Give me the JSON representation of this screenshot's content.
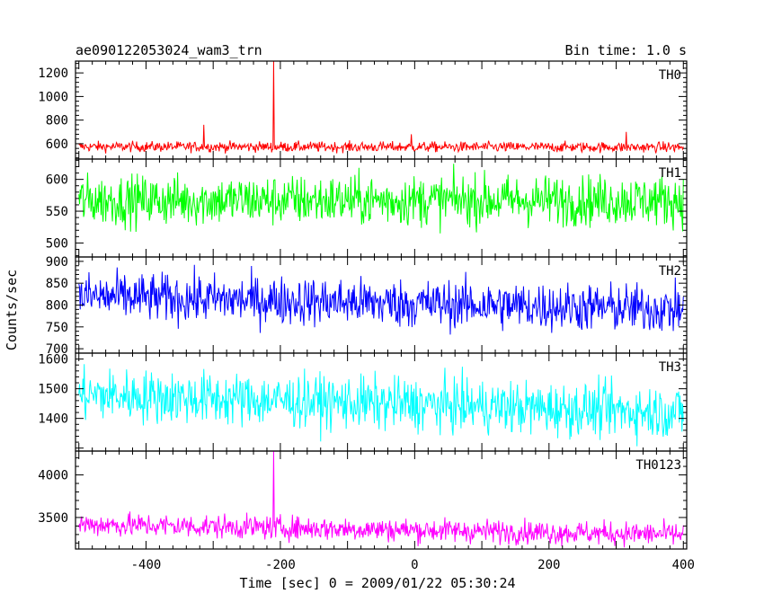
{
  "chart_data": {
    "type": "line",
    "title": "ae090122053024_wam3_trn",
    "bin_time_label": "Bin time: 1.0 s",
    "xlabel": "Time [sec] 0 = 2009/01/22 05:30:24",
    "ylabel": "Counts/sec",
    "xlim": [
      -505,
      405
    ],
    "x_ticks": [
      -400,
      -200,
      0,
      200,
      400
    ],
    "x_range": [
      -500,
      400
    ],
    "x_step": 1,
    "panels": [
      {
        "name": "TH0",
        "color": "#ff0000",
        "ylim": [
          470,
          1300
        ],
        "yticks": [
          600,
          800,
          1000,
          1200
        ],
        "mean": 575,
        "noise": 22,
        "trend": -5,
        "spikes": [
          [
            -314,
            760
          ],
          [
            -210,
            1300
          ],
          [
            -5,
            680
          ],
          [
            315,
            700
          ]
        ]
      },
      {
        "name": "TH1",
        "color": "#00ff00",
        "ylim": [
          478,
          632
        ],
        "yticks": [
          500,
          550,
          600
        ],
        "mean": 567,
        "noise": 20,
        "trend": 0,
        "spikes": []
      },
      {
        "name": "TH2",
        "color": "#0000ff",
        "ylim": [
          690,
          910
        ],
        "yticks": [
          700,
          750,
          800,
          850,
          900
        ],
        "mean": 820,
        "noise": 28,
        "trend": -30,
        "spikes": []
      },
      {
        "name": "TH3",
        "color": "#00ffff",
        "ylim": [
          1290,
          1620
        ],
        "yticks": [
          1400,
          1500,
          1600
        ],
        "mean": 1480,
        "noise": 45,
        "trend": -60,
        "spikes": []
      },
      {
        "name": "TH0123",
        "color": "#ff00ff",
        "ylim": [
          3130,
          4280
        ],
        "yticks": [
          3500,
          4000
        ],
        "mean": 3420,
        "noise": 70,
        "trend": -120,
        "spikes": [
          [
            -210,
            4280
          ]
        ]
      }
    ]
  }
}
